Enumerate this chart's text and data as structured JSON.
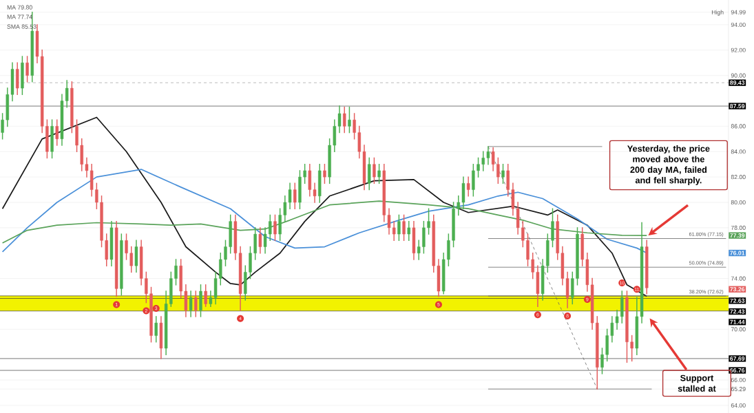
{
  "chart_data": {
    "type": "candlestick",
    "categories": [
      null,
      null,
      null,
      null,
      null,
      null,
      null,
      null,
      null,
      null,
      null,
      null,
      null,
      null,
      null,
      null,
      null,
      null,
      null,
      null,
      null,
      null,
      null,
      null,
      null,
      null,
      null,
      null,
      null,
      null,
      null,
      null,
      null,
      null,
      null,
      null,
      null,
      null,
      null,
      null,
      null,
      null,
      null,
      null,
      null,
      null,
      null,
      null,
      null,
      null,
      null,
      null,
      null,
      null,
      null,
      null,
      null,
      null,
      null,
      null,
      null,
      null,
      null,
      null,
      null,
      null,
      null,
      null,
      null,
      null,
      null,
      null,
      null,
      null,
      null,
      null,
      null,
      null,
      null,
      null,
      null,
      null,
      null,
      null,
      null,
      null,
      null,
      null,
      null,
      null,
      null,
      null,
      null,
      null,
      null,
      null,
      null,
      null,
      null,
      null,
      null,
      null,
      null,
      null,
      null,
      null,
      null,
      null,
      null,
      null,
      null,
      null,
      null,
      null,
      null,
      null,
      null,
      null,
      null,
      null,
      null,
      null,
      null,
      null,
      null,
      null,
      null,
      null,
      null,
      null,
      null,
      null,
      null,
      null,
      null,
      null,
      null,
      null,
      null,
      null,
      null,
      null,
      null,
      null,
      null,
      null,
      null
    ],
    "ohlc": [
      [
        85.5,
        87.0,
        85.0,
        86.5
      ],
      [
        86.5,
        89.0,
        86.0,
        88.5
      ],
      [
        88.5,
        91.0,
        88.0,
        90.5
      ],
      [
        90.5,
        91.0,
        88.5,
        89.0
      ],
      [
        89.0,
        91.5,
        88.5,
        91.0
      ],
      [
        91.0,
        91.5,
        89.5,
        90.0
      ],
      [
        90.0,
        94.99,
        89.5,
        93.5
      ],
      [
        93.5,
        94.0,
        91.0,
        91.5
      ],
      [
        91.5,
        92.0,
        85.5,
        86.0
      ],
      [
        86.0,
        86.5,
        83.5,
        84.0
      ],
      [
        84.0,
        86.5,
        83.5,
        86.0
      ],
      [
        86.0,
        86.5,
        84.5,
        85.0
      ],
      [
        85.0,
        88.5,
        84.5,
        88.0
      ],
      [
        88.0,
        89.6,
        87.5,
        89.0
      ],
      [
        89.0,
        89.5,
        85.5,
        86.0
      ],
      [
        86.0,
        86.5,
        84.0,
        84.5
      ],
      [
        84.5,
        85.0,
        82.5,
        83.0
      ],
      [
        83.0,
        83.5,
        82.0,
        82.5
      ],
      [
        82.5,
        83.0,
        80.5,
        81.0
      ],
      [
        81.0,
        81.5,
        79.5,
        80.0
      ],
      [
        80.0,
        80.5,
        76.5,
        77.0
      ],
      [
        77.0,
        77.5,
        75.0,
        75.5
      ],
      [
        75.5,
        78.5,
        75.0,
        78.0
      ],
      [
        78.0,
        78.5,
        72.6,
        73.2
      ],
      [
        73.2,
        77.5,
        72.7,
        77.0
      ],
      [
        77.0,
        77.5,
        75.5,
        76.0
      ],
      [
        76.0,
        76.5,
        74.5,
        75.0
      ],
      [
        75.0,
        77.0,
        74.5,
        76.5
      ],
      [
        76.5,
        77.0,
        73.5,
        74.0
      ],
      [
        74.0,
        74.5,
        72.1,
        72.8
      ],
      [
        72.8,
        73.3,
        69.0,
        69.5
      ],
      [
        69.5,
        71.0,
        69.0,
        70.5
      ],
      [
        70.5,
        71.0,
        67.7,
        68.5
      ],
      [
        68.5,
        73.0,
        68.0,
        72.0
      ],
      [
        72.0,
        74.5,
        71.8,
        74.0
      ],
      [
        74.0,
        75.5,
        73.5,
        75.0
      ],
      [
        75.0,
        75.5,
        72.5,
        73.0
      ],
      [
        73.0,
        73.5,
        71.0,
        71.5
      ],
      [
        71.5,
        73.0,
        71.0,
        72.5
      ],
      [
        72.5,
        73.0,
        71.0,
        71.5
      ],
      [
        71.5,
        73.5,
        71.0,
        73.0
      ],
      [
        73.0,
        73.5,
        71.8,
        72.0
      ],
      [
        72.0,
        73.0,
        71.8,
        72.5
      ],
      [
        72.5,
        74.5,
        72.0,
        74.0
      ],
      [
        74.0,
        76.0,
        73.5,
        75.5
      ],
      [
        75.5,
        77.0,
        75.0,
        76.5
      ],
      [
        76.5,
        79.0,
        76.0,
        78.5
      ],
      [
        78.5,
        79.0,
        75.5,
        76.0
      ],
      [
        76.0,
        76.5,
        71.5,
        72.8
      ],
      [
        72.8,
        75.0,
        72.3,
        74.5
      ],
      [
        74.5,
        76.5,
        74.0,
        76.0
      ],
      [
        76.0,
        78.0,
        75.5,
        77.5
      ],
      [
        77.5,
        78.0,
        76.0,
        76.5
      ],
      [
        76.5,
        78.0,
        76.0,
        77.5
      ],
      [
        77.5,
        79.0,
        77.0,
        78.5
      ],
      [
        78.5,
        79.0,
        77.0,
        77.5
      ],
      [
        77.5,
        79.5,
        77.0,
        79.0
      ],
      [
        79.0,
        80.5,
        78.5,
        80.0
      ],
      [
        80.0,
        81.5,
        79.5,
        81.0
      ],
      [
        81.0,
        81.5,
        79.5,
        80.0
      ],
      [
        80.0,
        82.5,
        79.5,
        82.0
      ],
      [
        82.0,
        83.0,
        81.5,
        82.5
      ],
      [
        82.5,
        83.0,
        80.5,
        81.0
      ],
      [
        81.0,
        81.5,
        80.0,
        80.5
      ],
      [
        80.5,
        83.0,
        80.0,
        82.5
      ],
      [
        82.5,
        83.0,
        81.5,
        82.0
      ],
      [
        82.0,
        85.0,
        81.5,
        84.5
      ],
      [
        84.5,
        86.5,
        84.0,
        86.0
      ],
      [
        86.0,
        87.6,
        85.5,
        87.0
      ],
      [
        87.0,
        87.5,
        85.5,
        86.0
      ],
      [
        86.0,
        87.5,
        85.5,
        86.5
      ],
      [
        86.5,
        87.0,
        85.0,
        85.5
      ],
      [
        85.5,
        86.0,
        83.5,
        84.0
      ],
      [
        84.0,
        84.5,
        81.0,
        81.5
      ],
      [
        81.5,
        83.5,
        81.0,
        83.0
      ],
      [
        83.0,
        83.5,
        81.5,
        82.0
      ],
      [
        82.0,
        83.0,
        81.5,
        82.5
      ],
      [
        82.5,
        83.0,
        78.5,
        79.0
      ],
      [
        79.0,
        79.5,
        77.5,
        78.0
      ],
      [
        78.0,
        78.5,
        77.0,
        77.5
      ],
      [
        77.5,
        79.0,
        77.0,
        78.5
      ],
      [
        78.5,
        79.0,
        77.0,
        77.5
      ],
      [
        77.5,
        78.5,
        77.0,
        78.0
      ],
      [
        78.0,
        78.5,
        75.5,
        76.0
      ],
      [
        76.0,
        77.0,
        75.5,
        76.5
      ],
      [
        76.5,
        78.5,
        76.0,
        78.0
      ],
      [
        78.0,
        79.5,
        77.5,
        78.5
      ],
      [
        78.5,
        79.0,
        74.5,
        75.0
      ],
      [
        75.0,
        75.5,
        72.6,
        73.0
      ],
      [
        73.0,
        76.0,
        72.8,
        75.5
      ],
      [
        75.5,
        77.5,
        75.0,
        77.0
      ],
      [
        77.0,
        80.0,
        76.5,
        79.5
      ],
      [
        79.5,
        80.5,
        79.0,
        80.0
      ],
      [
        80.0,
        82.0,
        79.5,
        81.5
      ],
      [
        81.5,
        82.0,
        80.5,
        81.0
      ],
      [
        81.0,
        83.0,
        80.5,
        82.5
      ],
      [
        82.5,
        83.5,
        82.0,
        83.0
      ],
      [
        83.0,
        84.0,
        82.5,
        83.5
      ],
      [
        83.5,
        84.4,
        83.0,
        84.0
      ],
      [
        84.0,
        84.3,
        82.5,
        83.0
      ],
      [
        83.0,
        83.5,
        81.5,
        82.0
      ],
      [
        82.0,
        83.0,
        81.5,
        82.5
      ],
      [
        82.5,
        83.0,
        80.5,
        81.0
      ],
      [
        81.0,
        81.5,
        79.0,
        79.5
      ],
      [
        79.5,
        80.0,
        77.5,
        78.0
      ],
      [
        78.0,
        78.5,
        76.5,
        77.0
      ],
      [
        77.0,
        77.5,
        75.0,
        75.5
      ],
      [
        75.5,
        76.0,
        74.0,
        74.5
      ],
      [
        74.5,
        75.0,
        71.8,
        72.8
      ],
      [
        72.8,
        75.5,
        72.3,
        75.0
      ],
      [
        75.0,
        77.5,
        74.5,
        77.0
      ],
      [
        77.0,
        79.5,
        76.5,
        78.5
      ],
      [
        78.5,
        79.0,
        75.5,
        76.0
      ],
      [
        76.0,
        76.5,
        73.5,
        74.0
      ],
      [
        74.0,
        74.5,
        71.7,
        72.5
      ],
      [
        72.5,
        74.5,
        72.0,
        74.0
      ],
      [
        74.0,
        78.0,
        73.5,
        77.5
      ],
      [
        77.5,
        78.0,
        75.0,
        75.5
      ],
      [
        75.5,
        76.0,
        73.0,
        73.5
      ],
      [
        73.5,
        74.0,
        70.0,
        70.5
      ],
      [
        70.5,
        71.0,
        65.29,
        67.0
      ],
      [
        67.0,
        68.5,
        66.5,
        68.0
      ],
      [
        68.0,
        70.0,
        67.5,
        69.5
      ],
      [
        69.5,
        71.0,
        69.0,
        70.5
      ],
      [
        70.5,
        71.5,
        70.0,
        71.0
      ],
      [
        71.0,
        73.0,
        70.5,
        72.5
      ],
      [
        72.5,
        73.0,
        67.4,
        69.0
      ],
      [
        69.0,
        69.5,
        67.5,
        68.5
      ],
      [
        68.5,
        72.5,
        68.0,
        71.0
      ],
      [
        71.0,
        78.4,
        70.5,
        76.5
      ],
      [
        76.5,
        77.0,
        72.8,
        73.26
      ],
      null,
      null,
      null,
      null,
      null,
      null,
      null,
      null,
      null,
      null,
      null,
      null,
      null,
      null,
      null,
      null
    ],
    "series": [
      {
        "type": "line",
        "color": "#1a1a1a",
        "values": [
          79.5,
          null,
          null,
          null,
          null,
          null,
          null,
          null,
          85,
          null,
          null,
          null,
          null,
          null,
          null,
          null,
          null,
          null,
          null,
          86.7,
          null,
          null,
          null,
          null,
          null,
          84,
          null,
          null,
          null,
          null,
          null,
          null,
          80,
          null,
          null,
          null,
          null,
          76.5,
          null,
          null,
          null,
          null,
          null,
          74.5,
          null,
          null,
          73.6,
          null,
          73.5,
          null,
          null,
          74.5,
          null,
          null,
          null,
          null,
          76,
          null,
          null,
          null,
          null,
          78.5,
          null,
          null,
          null,
          null,
          80.5,
          null,
          null,
          null,
          null,
          null,
          null,
          null,
          null,
          81.7,
          null,
          null,
          null,
          null,
          null,
          null,
          null,
          81.8,
          null,
          null,
          null,
          null,
          null,
          80,
          null,
          null,
          null,
          null,
          79.2,
          null,
          null,
          null,
          null,
          null,
          null,
          null,
          null,
          79.7,
          null,
          null,
          null,
          null,
          null,
          null,
          79.0,
          null,
          79.4,
          null,
          null,
          null,
          null,
          null,
          78.2,
          null,
          null,
          null,
          null,
          76.0,
          null,
          null,
          73.5,
          null,
          null,
          null,
          72.6,
          null,
          null,
          null,
          null,
          null,
          null,
          null,
          null,
          null,
          null,
          null,
          null,
          null,
          null,
          null,
          null
        ]
      },
      {
        "type": "line",
        "color": "#4a90d9",
        "values": [
          76.1,
          null,
          null,
          null,
          null,
          78,
          null,
          null,
          null,
          null,
          null,
          80,
          null,
          null,
          null,
          null,
          null,
          null,
          null,
          82,
          null,
          null,
          null,
          null,
          null,
          null,
          null,
          null,
          82.6,
          null,
          null,
          null,
          null,
          null,
          null,
          null,
          81.2,
          null,
          null,
          null,
          null,
          null,
          null,
          null,
          null,
          null,
          79.5,
          null,
          null,
          null,
          null,
          null,
          null,
          77.3,
          null,
          null,
          null,
          null,
          null,
          76.4,
          null,
          null,
          null,
          null,
          null,
          76.5,
          null,
          null,
          null,
          null,
          null,
          null,
          77.6,
          null,
          null,
          null,
          null,
          null,
          null,
          null,
          78.6,
          null,
          null,
          null,
          null,
          null,
          79.3,
          null,
          null,
          null,
          null,
          null,
          null,
          null,
          79.8,
          null,
          null,
          null,
          null,
          null,
          80.5,
          null,
          null,
          null,
          80.8,
          null,
          null,
          null,
          null,
          80.3,
          null,
          null,
          null,
          null,
          null,
          null,
          78.7,
          null,
          null,
          null,
          null,
          null,
          77.1,
          null,
          null,
          null,
          null,
          null,
          76.4,
          null,
          76.01,
          null,
          null,
          null,
          null,
          null,
          null,
          null,
          null,
          null,
          null,
          null,
          null,
          null,
          null,
          null,
          null
        ]
      },
      {
        "type": "line",
        "color": "#5aa35a",
        "values": [
          76.8,
          null,
          null,
          null,
          null,
          77.8,
          null,
          null,
          null,
          null,
          null,
          78.2,
          null,
          null,
          null,
          null,
          null,
          null,
          null,
          78.4,
          null,
          null,
          null,
          null,
          null,
          null,
          null,
          null,
          78.3,
          null,
          null,
          null,
          null,
          null,
          78.2,
          null,
          null,
          null,
          null,
          null,
          78.3,
          null,
          null,
          null,
          null,
          null,
          null,
          null,
          77.8,
          null,
          null,
          null,
          null,
          77.9,
          null,
          null,
          null,
          null,
          78.6,
          null,
          null,
          null,
          null,
          null,
          null,
          null,
          79.8,
          null,
          null,
          null,
          null,
          null,
          null,
          null,
          null,
          null,
          80.1,
          null,
          null,
          null,
          null,
          null,
          null,
          null,
          null,
          null,
          79.8,
          null,
          null,
          null,
          null,
          null,
          null,
          null,
          79.5,
          null,
          null,
          null,
          null,
          null,
          79,
          null,
          null,
          null,
          null,
          78.6,
          null,
          null,
          null,
          null,
          null,
          77.9,
          null,
          null,
          null,
          null,
          null,
          null,
          77.6,
          null,
          null,
          null,
          null,
          null,
          null,
          77.4,
          null,
          null,
          null,
          null,
          77.39,
          null,
          null,
          null,
          null,
          null,
          null,
          null,
          null,
          null,
          null,
          null,
          null,
          null,
          null,
          null,
          null
        ]
      },
      {
        "type": "line",
        "color": "#666666",
        "values": [
          null,
          null,
          null,
          null,
          null,
          null,
          null,
          null,
          null,
          null,
          null,
          null,
          null,
          null,
          null,
          null,
          null,
          null,
          null,
          null,
          null,
          null,
          null,
          null,
          null,
          null,
          null,
          null,
          null,
          null,
          null,
          null,
          null,
          null,
          null,
          null,
          null,
          null,
          null,
          null,
          null,
          null,
          null,
          null,
          null,
          null,
          null,
          null,
          null,
          null,
          null,
          null,
          null,
          null,
          null,
          null,
          null,
          null,
          null,
          null,
          null,
          null,
          null,
          null,
          null,
          null,
          null,
          null,
          null,
          null,
          null,
          null,
          null,
          null,
          null,
          null,
          null,
          null,
          null,
          null,
          null,
          null,
          null,
          null,
          null,
          null,
          null,
          null,
          null,
          null,
          null,
          null,
          null,
          null,
          null,
          null,
          null,
          null,
          84.4,
          null,
          null,
          null,
          null,
          null,
          null,
          null,
          null,
          null,
          null,
          null,
          null,
          null,
          null,
          null,
          null,
          null,
          null,
          null,
          null,
          null,
          null,
          84.4,
          null,
          null,
          null,
          null,
          null,
          null,
          null,
          null,
          null,
          null,
          null,
          null,
          null,
          null,
          null,
          null,
          null,
          null,
          null,
          null,
          null,
          null,
          null,
          null,
          null
        ]
      },
      {
        "type": "line",
        "color": "#666666",
        "values": [
          null,
          null,
          null,
          null,
          null,
          null,
          null,
          null,
          null,
          null,
          null,
          null,
          null,
          null,
          null,
          null,
          null,
          null,
          null,
          null,
          null,
          null,
          null,
          null,
          null,
          null,
          null,
          null,
          null,
          null,
          null,
          null,
          null,
          null,
          null,
          null,
          null,
          null,
          null,
          null,
          null,
          null,
          null,
          null,
          null,
          null,
          null,
          null,
          null,
          null,
          null,
          null,
          null,
          null,
          null,
          null,
          null,
          null,
          null,
          null,
          null,
          null,
          null,
          null,
          null,
          null,
          null,
          null,
          null,
          null,
          null,
          null,
          null,
          null,
          null,
          null,
          null,
          null,
          null,
          null,
          null,
          null,
          null,
          null,
          null,
          null,
          null,
          null,
          null,
          null,
          null,
          null,
          null,
          null,
          null,
          null,
          null,
          null,
          77.15,
          null,
          null,
          null,
          null,
          null,
          null,
          null,
          null,
          null,
          null,
          null,
          null,
          null,
          null,
          null,
          null,
          null,
          null,
          null,
          null,
          null,
          null,
          null,
          null,
          null,
          null,
          null,
          null,
          null,
          null,
          null,
          null,
          null,
          null,
          null,
          null,
          null,
          null,
          null,
          null,
          null,
          null,
          null,
          null,
          null,
          null,
          null,
          77.15
        ]
      },
      {
        "type": "line",
        "color": "#666666",
        "values": [
          null,
          null,
          null,
          null,
          null,
          null,
          null,
          null,
          null,
          null,
          null,
          null,
          null,
          null,
          null,
          null,
          null,
          null,
          null,
          null,
          null,
          null,
          null,
          null,
          null,
          null,
          null,
          null,
          null,
          null,
          null,
          null,
          null,
          null,
          null,
          null,
          null,
          null,
          null,
          null,
          null,
          null,
          null,
          null,
          null,
          null,
          null,
          null,
          null,
          null,
          null,
          null,
          null,
          null,
          null,
          null,
          null,
          null,
          null,
          null,
          null,
          null,
          null,
          null,
          null,
          null,
          null,
          null,
          null,
          null,
          null,
          null,
          null,
          null,
          null,
          null,
          null,
          null,
          null,
          null,
          null,
          null,
          null,
          null,
          null,
          null,
          null,
          null,
          null,
          null,
          null,
          null,
          null,
          null,
          null,
          null,
          null,
          null,
          74.89,
          null,
          null,
          null,
          null,
          null,
          null,
          null,
          null,
          null,
          null,
          null,
          null,
          null,
          null,
          null,
          null,
          null,
          null,
          null,
          null,
          null,
          null,
          null,
          null,
          null,
          null,
          null,
          null,
          null,
          null,
          null,
          null,
          null,
          null,
          null,
          null,
          null,
          null,
          null,
          null,
          null,
          null,
          null,
          null,
          null,
          null,
          null,
          74.89
        ]
      },
      {
        "type": "line",
        "color": "#666666",
        "values": [
          null,
          null,
          null,
          null,
          null,
          null,
          null,
          null,
          null,
          null,
          null,
          null,
          null,
          null,
          null,
          null,
          null,
          null,
          null,
          null,
          null,
          null,
          null,
          null,
          null,
          null,
          null,
          null,
          null,
          null,
          null,
          null,
          null,
          null,
          null,
          null,
          null,
          null,
          null,
          null,
          null,
          null,
          null,
          null,
          null,
          null,
          null,
          null,
          null,
          null,
          null,
          null,
          null,
          null,
          null,
          null,
          null,
          null,
          null,
          null,
          null,
          null,
          null,
          null,
          null,
          null,
          null,
          null,
          null,
          null,
          null,
          null,
          null,
          null,
          null,
          null,
          null,
          null,
          null,
          null,
          null,
          null,
          null,
          null,
          null,
          null,
          null,
          null,
          null,
          null,
          null,
          null,
          null,
          null,
          null,
          null,
          null,
          null,
          72.62,
          null,
          null,
          null,
          null,
          null,
          null,
          null,
          null,
          null,
          null,
          null,
          null,
          null,
          null,
          null,
          null,
          null,
          null,
          null,
          null,
          null,
          null,
          null,
          null,
          null,
          null,
          null,
          null,
          null,
          null,
          null,
          null,
          null,
          null,
          null,
          null,
          null,
          null,
          null,
          null,
          null,
          null,
          null,
          null,
          null,
          null,
          null,
          72.62
        ]
      },
      {
        "type": "line",
        "color": "#666666",
        "values": [
          null,
          null,
          null,
          null,
          null,
          null,
          null,
          null,
          null,
          null,
          null,
          null,
          null,
          null,
          null,
          null,
          null,
          null,
          null,
          null,
          null,
          null,
          null,
          null,
          null,
          null,
          null,
          null,
          null,
          null,
          null,
          null,
          null,
          null,
          null,
          null,
          null,
          null,
          null,
          null,
          null,
          null,
          null,
          null,
          null,
          null,
          null,
          null,
          null,
          null,
          null,
          null,
          null,
          null,
          null,
          null,
          null,
          null,
          null,
          null,
          null,
          null,
          null,
          null,
          null,
          null,
          null,
          null,
          null,
          null,
          null,
          null,
          null,
          null,
          null,
          null,
          null,
          null,
          null,
          null,
          null,
          null,
          null,
          null,
          null,
          null,
          null,
          null,
          null,
          null,
          null,
          null,
          null,
          null,
          null,
          null,
          null,
          null,
          65.29,
          null,
          null,
          null,
          null,
          null,
          null,
          null,
          null,
          null,
          null,
          null,
          null,
          null,
          null,
          null,
          null,
          null,
          null,
          null,
          null,
          null,
          null,
          null,
          null,
          null,
          null,
          null,
          null,
          null,
          null,
          null,
          null,
          65.29,
          null,
          null,
          null,
          null,
          null,
          null,
          null,
          null,
          null,
          null,
          null,
          null,
          null,
          null,
          null
        ]
      },
      {
        "type": "line",
        "color": "#666666",
        "line_style": "dashed",
        "values": [
          null,
          null,
          null,
          null,
          null,
          null,
          null,
          null,
          null,
          null,
          null,
          null,
          null,
          null,
          null,
          null,
          null,
          null,
          null,
          null,
          null,
          null,
          null,
          null,
          null,
          null,
          null,
          null,
          null,
          null,
          null,
          null,
          null,
          null,
          null,
          null,
          null,
          null,
          null,
          null,
          null,
          null,
          null,
          null,
          null,
          null,
          null,
          null,
          null,
          null,
          null,
          null,
          null,
          null,
          null,
          null,
          null,
          null,
          null,
          null,
          null,
          null,
          null,
          null,
          null,
          null,
          null,
          null,
          null,
          null,
          null,
          null,
          null,
          null,
          null,
          null,
          null,
          null,
          null,
          null,
          null,
          null,
          null,
          null,
          null,
          null,
          null,
          null,
          null,
          null,
          null,
          null,
          null,
          null,
          null,
          null,
          null,
          null,
          84.4,
          null,
          null,
          null,
          null,
          null,
          null,
          null,
          null,
          null,
          null,
          null,
          null,
          null,
          null,
          null,
          null,
          null,
          null,
          null,
          null,
          null,
          65.29,
          null,
          null,
          null,
          null,
          null,
          null,
          null,
          null,
          null,
          null,
          null,
          null,
          null,
          null,
          null,
          null,
          null,
          null,
          null,
          null,
          null,
          null,
          null,
          null,
          null,
          null
        ]
      }
    ],
    "ylim": [
      63.4,
      95.95
    ],
    "yticks": [
      {
        "value": 64,
        "label": "64.00"
      },
      {
        "value": 65.29,
        "label": "65.29"
      },
      {
        "value": 66,
        "label": "66.00"
      },
      {
        "value": 70,
        "label": "70.00"
      },
      {
        "value": 74,
        "label": "74.00"
      },
      {
        "value": 78,
        "label": "78.00"
      },
      {
        "value": 80,
        "label": "80.00"
      },
      {
        "value": 82,
        "label": "82.00"
      },
      {
        "value": 84,
        "label": "84.00"
      },
      {
        "value": 86,
        "label": "86.00"
      },
      {
        "value": 90,
        "label": "90.00"
      },
      {
        "value": 92,
        "label": "92.00"
      },
      {
        "value": 94,
        "label": "94.00"
      },
      {
        "value": 94.99,
        "label": "94.99"
      }
    ],
    "tick_labels": "y",
    "grid": "y",
    "ref_lines": [
      {
        "axis": "y",
        "value": 89.43,
        "label": "89.43",
        "color": "#999999",
        "line_style": "dashed"
      },
      {
        "axis": "y",
        "value": 87.59,
        "label": "87.59",
        "color": "#333333"
      },
      {
        "axis": "y",
        "value": 72.63,
        "label": "72.63",
        "color": "#333333"
      },
      {
        "axis": "y",
        "value": 72.43,
        "label": "72.43",
        "color": "#333333"
      },
      {
        "axis": "y",
        "value": 71.44,
        "label": "71.44",
        "color": "#333333"
      },
      {
        "axis": "y",
        "value": 67.69,
        "label": "67.69",
        "color": "#333333"
      },
      {
        "axis": "y",
        "value": 66.76,
        "label": "66.76",
        "color": "#333333"
      }
    ],
    "bands": [
      {
        "axis": "y",
        "from": 71.44,
        "to": 72.63,
        "color": "#f2f200"
      }
    ],
    "annotations": [
      "MA 79.80",
      "MA 77.74",
      "SMA 85.53",
      "High",
      "77.39",
      "76.01",
      "73.26",
      "61.80% (77.15)",
      "50.00% (74.89)",
      "38.20% (72.62)",
      {
        "text": "1",
        "y": 71.95
      },
      {
        "text": "2",
        "y": 71.45
      },
      {
        "text": "3",
        "y": 71.65
      },
      {
        "text": "4",
        "y": 70.85
      },
      {
        "text": "5",
        "y": 71.95
      },
      {
        "text": "6",
        "y": 71.15
      },
      {
        "text": "8",
        "y": 71.05
      },
      {
        "text": "9",
        "y": 72.35
      },
      {
        "text": "10",
        "y": 73.65
      },
      {
        "text": "11",
        "y": 73.15
      },
      "Yesterday, the price moved above the 200 day MA, failed and fell sharply.",
      "Support stalled at"
    ]
  }
}
